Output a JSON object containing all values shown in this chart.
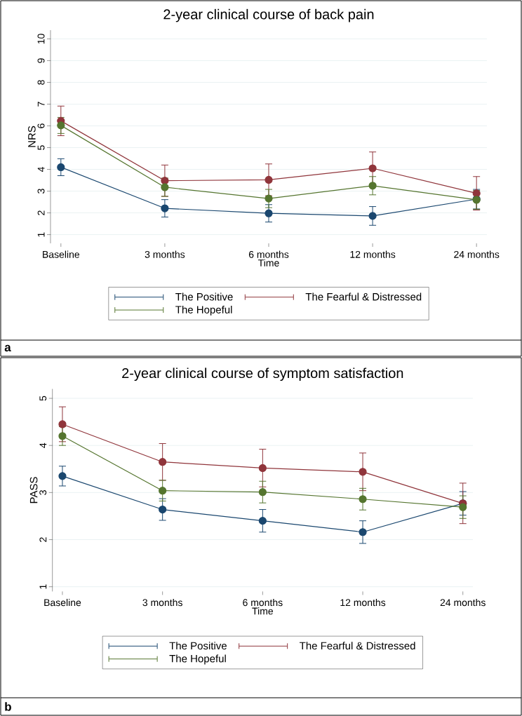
{
  "chart_data": [
    {
      "type": "line",
      "title": "2-year clinical course of back pain",
      "xlabel": "Time",
      "ylabel": "NRS",
      "categories": [
        "Baseline",
        "3 months",
        "6 months",
        "12 months",
        "24 months"
      ],
      "series": [
        {
          "name": "The Positive",
          "color": "#1a476f",
          "values": [
            4.1,
            2.21,
            1.98,
            1.86,
            2.63
          ],
          "errors": [
            0.39,
            0.4,
            0.4,
            0.43,
            0.45
          ]
        },
        {
          "name": "The Fearful & Distressed",
          "color": "#90353b",
          "values": [
            6.23,
            3.48,
            3.52,
            4.05,
            2.9
          ],
          "errors": [
            0.68,
            0.72,
            0.73,
            0.75,
            0.77
          ]
        },
        {
          "name": "The Hopeful",
          "color": "#55752f",
          "values": [
            6.02,
            3.18,
            2.66,
            3.25,
            2.6
          ],
          "errors": [
            0.37,
            0.42,
            0.42,
            0.42,
            0.43
          ]
        }
      ],
      "ylim": [
        0.6,
        10.4
      ],
      "yticks": [
        1,
        2,
        3,
        4,
        5,
        6,
        7,
        8,
        9,
        10
      ],
      "grid": "y",
      "legend": "bottom",
      "marker": "circle",
      "annotations": [
        "a"
      ]
    },
    {
      "type": "line",
      "title": "2-year clinical course of symptom satisfaction",
      "xlabel": "Time",
      "ylabel": "PASS",
      "categories": [
        "Baseline",
        "3 months",
        "6 months",
        "12 months",
        "24 months"
      ],
      "series": [
        {
          "name": "The Positive",
          "color": "#1a476f",
          "values": [
            3.35,
            2.64,
            2.4,
            2.16,
            2.77
          ],
          "errors": [
            0.21,
            0.23,
            0.24,
            0.24,
            0.25
          ]
        },
        {
          "name": "The Fearful & Distressed",
          "color": "#90353b",
          "values": [
            4.45,
            3.65,
            3.52,
            3.44,
            2.77
          ],
          "errors": [
            0.37,
            0.39,
            0.4,
            0.4,
            0.43
          ]
        },
        {
          "name": "The Hopeful",
          "color": "#55752f",
          "values": [
            4.2,
            3.04,
            3.01,
            2.86,
            2.69
          ],
          "errors": [
            0.2,
            0.22,
            0.23,
            0.23,
            0.24
          ]
        }
      ],
      "ylim": [
        0.9,
        5.2
      ],
      "yticks": [
        1,
        2,
        3,
        4,
        5
      ],
      "grid": "y",
      "legend": "bottom",
      "marker": "circle",
      "annotations": [
        "b"
      ]
    }
  ]
}
